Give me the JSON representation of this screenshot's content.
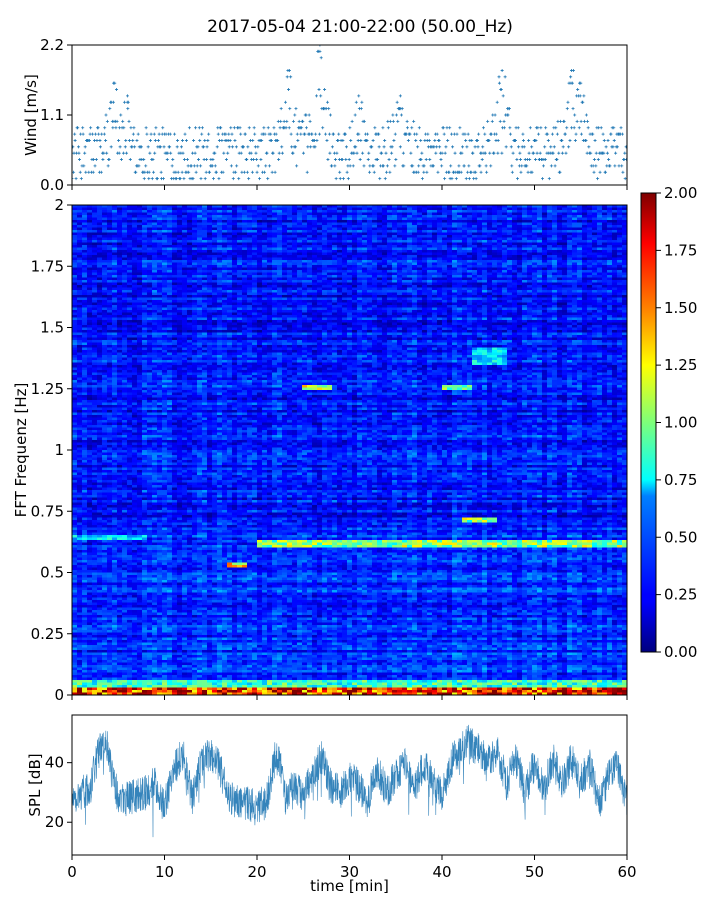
{
  "title": "2017-05-04 21:00-22:00 (50.00_Hz)",
  "colors": {
    "series": "#1f77b4",
    "colormap": "jet"
  },
  "chart_data": [
    {
      "id": "wind",
      "type": "scatter",
      "ylabel": "Wind [m/s]",
      "xlim": [
        0,
        60
      ],
      "ylim": [
        0,
        2.2
      ],
      "yticks": [
        0.0,
        1.1,
        2.2
      ],
      "ytick_labels": [
        "0.0",
        "1.1",
        "2.2"
      ],
      "xticks": [
        0,
        10,
        20,
        30,
        40,
        50,
        60
      ],
      "marker": "+",
      "quantization_step_m_s": 0.1,
      "typical_range": [
        0.1,
        1.0
      ],
      "peaks": [
        {
          "x": 4.5,
          "y": 1.6
        },
        {
          "x": 6.0,
          "y": 1.4
        },
        {
          "x": 23.5,
          "y": 1.8
        },
        {
          "x": 26.8,
          "y": 2.2
        },
        {
          "x": 31.0,
          "y": 1.4
        },
        {
          "x": 35.5,
          "y": 1.4
        },
        {
          "x": 46.5,
          "y": 1.8
        },
        {
          "x": 54.0,
          "y": 1.8
        },
        {
          "x": 55.0,
          "y": 1.6
        }
      ]
    },
    {
      "id": "spectrogram",
      "type": "heatmap",
      "ylabel": "FFT Frequenz [Hz]",
      "xlim": [
        0,
        60
      ],
      "ylim": [
        0,
        2
      ],
      "yticks": [
        0,
        0.25,
        0.5,
        0.75,
        1,
        1.25,
        1.5,
        1.75,
        2
      ],
      "ytick_labels": [
        "0",
        "0.25",
        "0.5",
        "0.75",
        "1",
        "1.25",
        "1.5",
        "1.75",
        "2"
      ],
      "xticks": [
        0,
        10,
        20,
        30,
        40,
        50,
        60
      ],
      "colorbar": {
        "range": [
          0.0,
          2.0
        ],
        "ticks": [
          "0.00",
          "0.25",
          "0.50",
          "0.75",
          "1.00",
          "1.25",
          "1.50",
          "1.75",
          "2.00"
        ]
      },
      "background_level": 0.25,
      "features": [
        {
          "band_hz": [
            0.0,
            0.03
          ],
          "x_range": [
            0,
            60
          ],
          "level": 2.0
        },
        {
          "band_hz": [
            0.03,
            0.06
          ],
          "x_range": [
            0,
            60
          ],
          "level": 1.0
        },
        {
          "band_hz": [
            0.6,
            0.63
          ],
          "x_range": [
            20,
            60
          ],
          "level": 1.2
        },
        {
          "band_hz": [
            0.63,
            0.65
          ],
          "x_range": [
            0,
            8
          ],
          "level": 0.8
        },
        {
          "band_hz": [
            0.7,
            0.72
          ],
          "x_range": [
            42,
            46
          ],
          "level": 1.2
        },
        {
          "band_hz": [
            1.25,
            1.27
          ],
          "x_range": [
            25,
            28
          ],
          "level": 1.4
        },
        {
          "band_hz": [
            1.25,
            1.27
          ],
          "x_range": [
            40,
            43
          ],
          "level": 1.1
        },
        {
          "band_hz": [
            1.35,
            1.42
          ],
          "x_range": [
            43,
            47
          ],
          "level": 0.8
        },
        {
          "band_hz": [
            0.52,
            0.54
          ],
          "x_range": [
            17,
            19
          ],
          "level": 1.6
        }
      ]
    },
    {
      "id": "spl",
      "type": "line",
      "ylabel": "SPL [dB]",
      "xlabel": "time [min]",
      "xlim": [
        0,
        60
      ],
      "ylim": [
        9,
        56
      ],
      "yticks": [
        20,
        40
      ],
      "ytick_labels": [
        "20",
        "40"
      ],
      "xticks": [
        0,
        10,
        20,
        30,
        40,
        50,
        60
      ],
      "xtick_labels": [
        "0",
        "10",
        "20",
        "30",
        "40",
        "50",
        "60"
      ],
      "envelope": [
        {
          "x": 0,
          "y": 27
        },
        {
          "x": 1,
          "y": 30
        },
        {
          "x": 2,
          "y": 32
        },
        {
          "x": 3,
          "y": 45
        },
        {
          "x": 3.5,
          "y": 46
        },
        {
          "x": 4,
          "y": 44
        },
        {
          "x": 5,
          "y": 28
        },
        {
          "x": 6,
          "y": 28
        },
        {
          "x": 7,
          "y": 29
        },
        {
          "x": 8,
          "y": 30
        },
        {
          "x": 9,
          "y": 33
        },
        {
          "x": 10,
          "y": 25
        },
        {
          "x": 11,
          "y": 38
        },
        {
          "x": 12,
          "y": 43
        },
        {
          "x": 13,
          "y": 28
        },
        {
          "x": 14,
          "y": 40
        },
        {
          "x": 15,
          "y": 43
        },
        {
          "x": 16,
          "y": 38
        },
        {
          "x": 17,
          "y": 28
        },
        {
          "x": 18,
          "y": 27
        },
        {
          "x": 19,
          "y": 26
        },
        {
          "x": 20,
          "y": 25
        },
        {
          "x": 21,
          "y": 27
        },
        {
          "x": 22,
          "y": 42
        },
        {
          "x": 22.5,
          "y": 40
        },
        {
          "x": 23,
          "y": 28
        },
        {
          "x": 24,
          "y": 33
        },
        {
          "x": 25,
          "y": 28
        },
        {
          "x": 26,
          "y": 36
        },
        {
          "x": 27,
          "y": 42
        },
        {
          "x": 28,
          "y": 32
        },
        {
          "x": 29,
          "y": 30
        },
        {
          "x": 30,
          "y": 35
        },
        {
          "x": 31,
          "y": 32
        },
        {
          "x": 32,
          "y": 27
        },
        {
          "x": 33,
          "y": 38
        },
        {
          "x": 34,
          "y": 30
        },
        {
          "x": 35,
          "y": 36
        },
        {
          "x": 36,
          "y": 40
        },
        {
          "x": 37,
          "y": 30
        },
        {
          "x": 38,
          "y": 40
        },
        {
          "x": 39,
          "y": 33
        },
        {
          "x": 40,
          "y": 30
        },
        {
          "x": 41,
          "y": 40
        },
        {
          "x": 42,
          "y": 45
        },
        {
          "x": 43,
          "y": 47
        },
        {
          "x": 44,
          "y": 44
        },
        {
          "x": 45,
          "y": 40
        },
        {
          "x": 46,
          "y": 44
        },
        {
          "x": 47,
          "y": 33
        },
        {
          "x": 48,
          "y": 41
        },
        {
          "x": 49,
          "y": 30
        },
        {
          "x": 50,
          "y": 40
        },
        {
          "x": 51,
          "y": 31
        },
        {
          "x": 52,
          "y": 41
        },
        {
          "x": 53,
          "y": 33
        },
        {
          "x": 54,
          "y": 41
        },
        {
          "x": 55,
          "y": 34
        },
        {
          "x": 56,
          "y": 39
        },
        {
          "x": 57,
          "y": 26
        },
        {
          "x": 58,
          "y": 35
        },
        {
          "x": 59,
          "y": 39
        },
        {
          "x": 60,
          "y": 27
        }
      ]
    }
  ]
}
